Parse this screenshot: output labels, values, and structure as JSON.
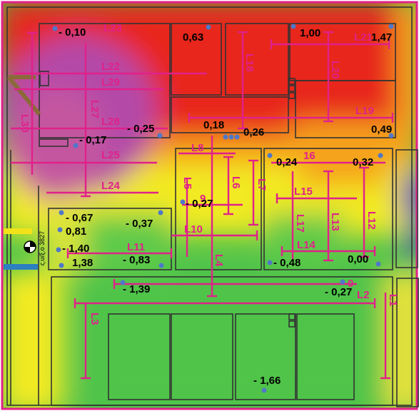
{
  "benchmark_label": "ς.υ/ξ.ο 3827",
  "point_values": {
    "p1": "- 0,10",
    "p2": "0,63",
    "p3": "1,00",
    "p4": "1,47",
    "p5": "- 0,17",
    "p6": "- 0,25",
    "p7": "0,18",
    "p8": "0,26",
    "p9": "0,49",
    "p10": "0,24",
    "p11": "0,32",
    "p12": "- 0,27",
    "p13": "- 0,67",
    "p14": "0,81",
    "p15": "- 0,37",
    "p16": "- 1,40",
    "p17": "1,38",
    "p18": "- 0,83",
    "p19": "- 0,48",
    "p20": "0,00",
    "p21": "- 1,39",
    "p22": "- 0,27",
    "p23": "- 1,66"
  },
  "line_labels": {
    "L1": "L1",
    "L2": "L2",
    "L3": "L3",
    "L4": "L4",
    "L5": "L5",
    "L6": "L6",
    "L7": "L7",
    "L8": "L8",
    "L9": "9",
    "L10": "L10",
    "L11": "L11",
    "L12": "L12",
    "L13": "L13",
    "L14": "L14",
    "L15": "L15",
    "L16": "16",
    "L17": "L17",
    "L18": "L18",
    "L19": "L19",
    "L20": "L20",
    "L21": "L21",
    "L22": "L22",
    "L23": "L23",
    "L24": "L24",
    "L25": "L25",
    "L27": "L27",
    "L28": "L28",
    "L29": "L29",
    "L30": "L30",
    "L_0": "0"
  },
  "colors": {
    "red": "#e8281e",
    "orange": "#f5a21a",
    "yellow": "#f2ea22",
    "green": "#4fc44a",
    "magenta": "#e0218a",
    "point": "#4f78c8",
    "purple": "#b44aa8"
  }
}
